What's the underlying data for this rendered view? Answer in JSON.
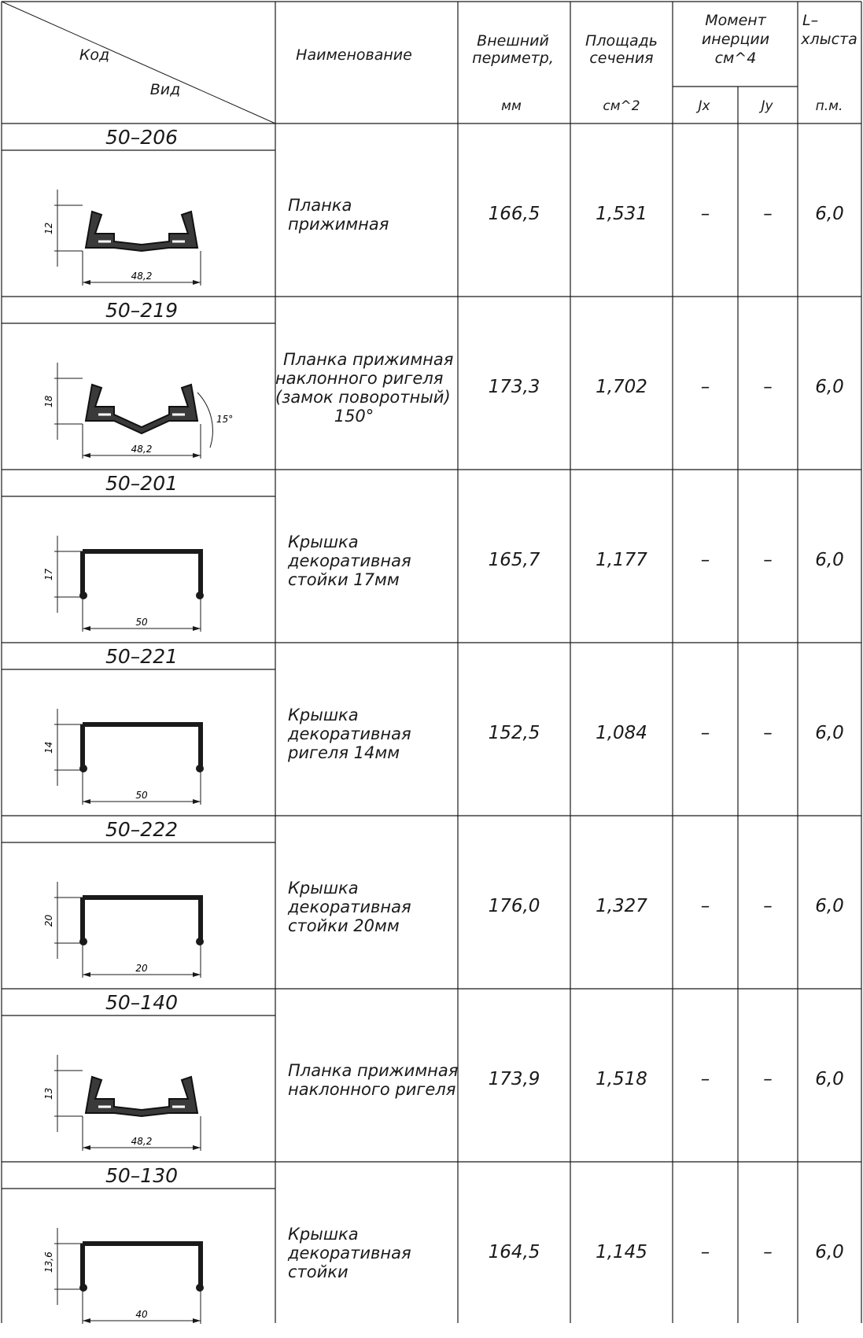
{
  "header": {
    "code_label": "Код",
    "view_label": "Вид",
    "name_label": "Наименование",
    "perimeter_label": [
      "Внешний",
      "периметр,"
    ],
    "perimeter_unit": "мм",
    "area_label": [
      "Площадь",
      "сечения"
    ],
    "area_unit": "см^2",
    "inertia_label": [
      "Момент",
      "инерции",
      "см^4"
    ],
    "jx_label": "Jx",
    "jy_label": "Jy",
    "length_label": [
      "L–",
      "хлыста"
    ],
    "length_unit": "п.м."
  },
  "rows": [
    {
      "code": "50–206",
      "name": [
        "Планка",
        "прижимная"
      ],
      "perimeter": "166,5",
      "area": "1,531",
      "jx": "–",
      "jy": "–",
      "length": "6,0",
      "shape": "clamp",
      "dim_w": "48,2",
      "dim_h": "12",
      "angle": ""
    },
    {
      "code": "50–219",
      "name": [
        "Планка прижимная",
        "наклонного ригеля",
        "(замок поворотный)",
        "150°"
      ],
      "perimeter": "173,3",
      "area": "1,702",
      "jx": "–",
      "jy": "–",
      "length": "6,0",
      "shape": "clamp-angled",
      "dim_w": "48,2",
      "dim_h": "18",
      "angle": "15°"
    },
    {
      "code": "50–201",
      "name": [
        "Крышка",
        "декоративная",
        "стойки 17мм"
      ],
      "perimeter": "165,7",
      "area": "1,177",
      "jx": "–",
      "jy": "–",
      "length": "6,0",
      "shape": "cover",
      "dim_w": "50",
      "dim_h": "17",
      "angle": ""
    },
    {
      "code": "50–221",
      "name": [
        "Крышка",
        "декоративная",
        "ригеля 14мм"
      ],
      "perimeter": "152,5",
      "area": "1,084",
      "jx": "–",
      "jy": "–",
      "length": "6,0",
      "shape": "cover",
      "dim_w": "50",
      "dim_h": "14",
      "angle": ""
    },
    {
      "code": "50–222",
      "name": [
        "Крышка",
        "декоративная",
        "стойки 20мм"
      ],
      "perimeter": "176,0",
      "area": "1,327",
      "jx": "–",
      "jy": "–",
      "length": "6,0",
      "shape": "cover",
      "dim_w": "20",
      "dim_h": "20",
      "angle": ""
    },
    {
      "code": "50–140",
      "name": [
        "Планка прижимная",
        "наклонного ригеля"
      ],
      "perimeter": "173,9",
      "area": "1,518",
      "jx": "–",
      "jy": "–",
      "length": "6,0",
      "shape": "clamp",
      "dim_w": "48,2",
      "dim_h": "13",
      "angle": ""
    },
    {
      "code": "50–130",
      "name": [
        "Крышка",
        "декоративная",
        "стойки"
      ],
      "perimeter": "164,5",
      "area": "1,145",
      "jx": "–",
      "jy": "–",
      "length": "6,0",
      "shape": "cover",
      "dim_w": "40",
      "dim_h": "13,6",
      "angle": ""
    }
  ]
}
